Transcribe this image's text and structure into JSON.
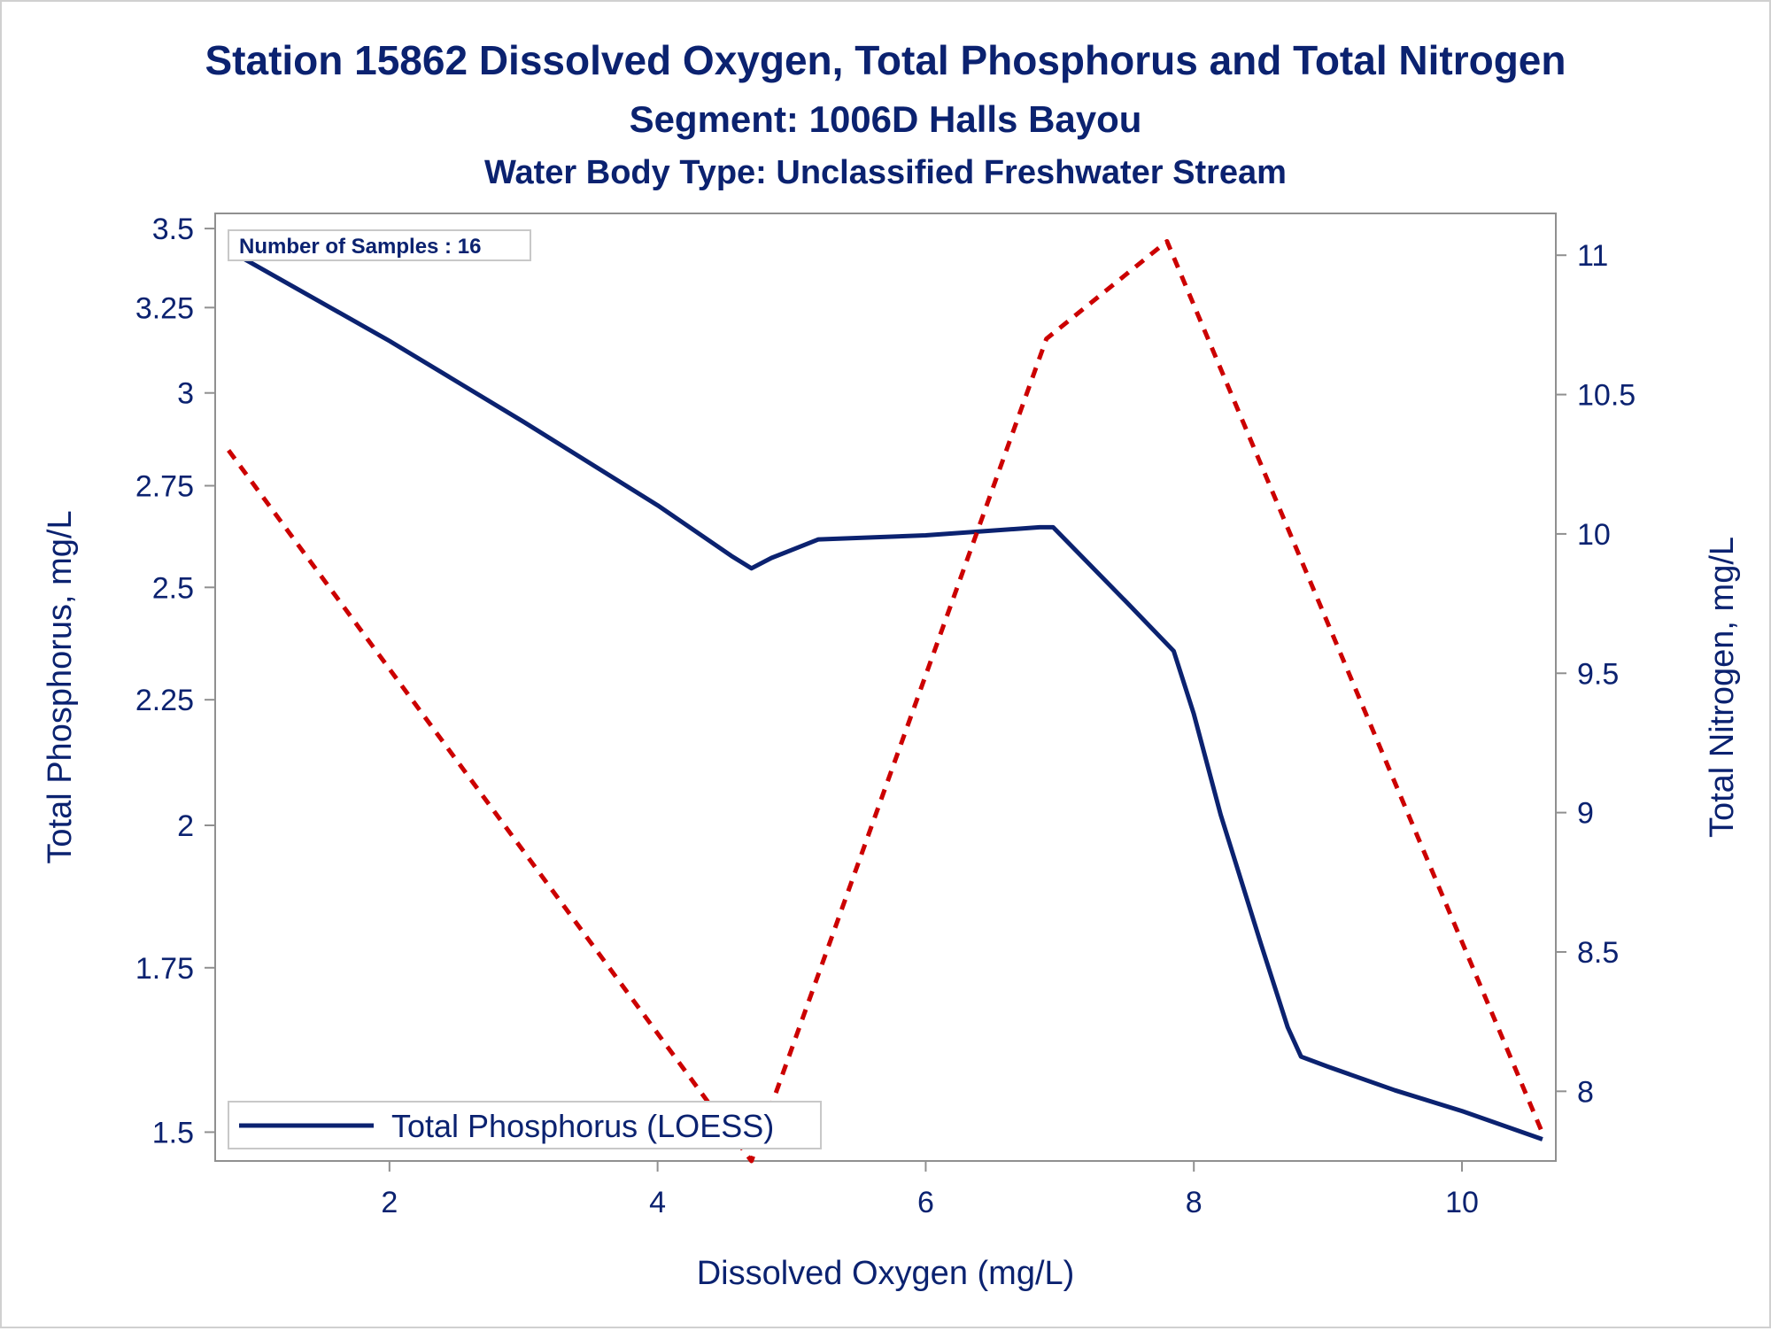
{
  "chart_data": {
    "type": "line",
    "title": "Station 15862  Dissolved Oxygen, Total Phosphorus and Total Nitrogen",
    "subtitle": "Segment: 1006D  Halls Bayou",
    "subtitle2": "Water Body Type: Unclassified Freshwater Stream",
    "xlabel": "Dissolved Oxygen (mg/L)",
    "ylabel_left": "Total Phosphorus, mg/L",
    "ylabel_right": "Total Nitrogen, mg/L",
    "xlim": [
      0.7,
      10.7
    ],
    "ylim_left": [
      1.46,
      3.55
    ],
    "ylim_right": [
      7.75,
      11.15
    ],
    "y_left_scale": "log",
    "x_ticks": [
      2,
      4,
      6,
      8,
      10
    ],
    "x_tick_labels": [
      "2",
      "4",
      "6",
      "8",
      "10"
    ],
    "y_left_ticks": [
      1.5,
      1.75,
      2,
      2.25,
      2.5,
      2.75,
      3,
      3.25,
      3.5
    ],
    "y_left_tick_labels": [
      "1.5",
      "1.75",
      "2",
      "2.25",
      "2.5",
      "2.75",
      "3",
      "3.25",
      "3.5"
    ],
    "y_right_ticks": [
      8,
      8.5,
      9,
      9.5,
      10,
      10.5,
      11
    ],
    "y_right_tick_labels": [
      "8",
      "8.5",
      "9",
      "9.5",
      "10",
      "10.5",
      "11"
    ],
    "annotation": "Number of Samples : 16",
    "legend_position": "bottom-left inside",
    "series": [
      {
        "name": "Total Phosphorus (LOESS)",
        "axis": "left",
        "color": "#0b2270",
        "style": "solid",
        "x": [
          0.8,
          2.0,
          3.0,
          4.0,
          4.55,
          4.7,
          4.85,
          5.2,
          6.0,
          6.85,
          6.95,
          7.5,
          7.85,
          8.0,
          8.2,
          8.5,
          8.7,
          8.8,
          9.0,
          9.5,
          10.0,
          10.6
        ],
        "y": [
          3.43,
          3.15,
          2.92,
          2.7,
          2.575,
          2.545,
          2.57,
          2.615,
          2.625,
          2.645,
          2.645,
          2.465,
          2.355,
          2.22,
          2.02,
          1.79,
          1.655,
          1.61,
          1.595,
          1.56,
          1.53,
          1.49
        ]
      },
      {
        "name": "Total Nitrogen",
        "axis": "right",
        "color": "#cc0000",
        "style": "dashed",
        "x": [
          0.8,
          4.7,
          6.9,
          7.8,
          10.6
        ],
        "y": [
          10.3,
          7.75,
          10.7,
          11.05,
          7.85
        ]
      }
    ]
  }
}
